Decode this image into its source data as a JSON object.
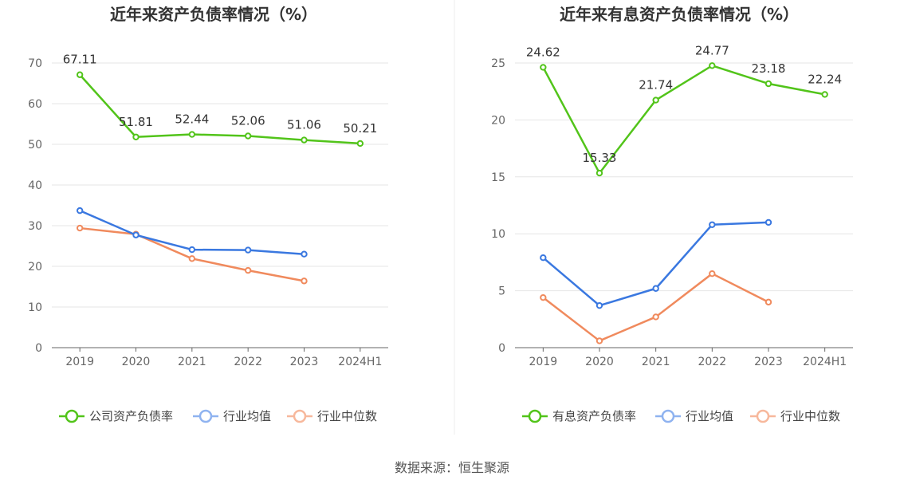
{
  "source": "数据来源：恒生聚源",
  "colors": {
    "green": "#52c41a",
    "blue": "#3a78e0",
    "orange": "#f08a5d",
    "blue_legend": "#8fb3f0",
    "orange_legend": "#f7b89c"
  },
  "chart_data": [
    {
      "type": "line",
      "title": "近年来资产负债率情况（%）",
      "categories": [
        "2019",
        "2020",
        "2021",
        "2022",
        "2023",
        "2024H1"
      ],
      "ylim": [
        0,
        70
      ],
      "yticks": [
        0,
        10,
        20,
        30,
        40,
        50,
        60,
        70
      ],
      "series": [
        {
          "name": "公司资产负债率",
          "values": [
            67.11,
            51.81,
            52.44,
            52.06,
            51.06,
            50.21
          ],
          "labels": [
            "67.11",
            "51.81",
            "52.44",
            "52.06",
            "51.06",
            "50.21"
          ]
        },
        {
          "name": "行业均值",
          "values": [
            33.7,
            27.7,
            24.1,
            24.0,
            23.0,
            null
          ]
        },
        {
          "name": "行业中位数",
          "values": [
            29.4,
            27.9,
            21.9,
            19.0,
            16.4,
            null
          ]
        }
      ]
    },
    {
      "type": "line",
      "title": "近年来有息资产负债率情况（%）",
      "categories": [
        "2019",
        "2020",
        "2021",
        "2022",
        "2023",
        "2024H1"
      ],
      "ylim": [
        0,
        25
      ],
      "yticks": [
        0,
        5,
        10,
        15,
        20,
        25
      ],
      "series": [
        {
          "name": "有息资产负债率",
          "values": [
            24.62,
            15.33,
            21.74,
            24.77,
            23.18,
            22.24
          ],
          "labels": [
            "24.62",
            "15.33",
            "21.74",
            "24.77",
            "23.18",
            "22.24"
          ]
        },
        {
          "name": "行业均值",
          "values": [
            7.9,
            3.7,
            5.2,
            10.8,
            11.0,
            null
          ]
        },
        {
          "name": "行业中位数",
          "values": [
            4.4,
            0.6,
            2.7,
            6.5,
            4.0,
            null
          ]
        }
      ]
    }
  ]
}
